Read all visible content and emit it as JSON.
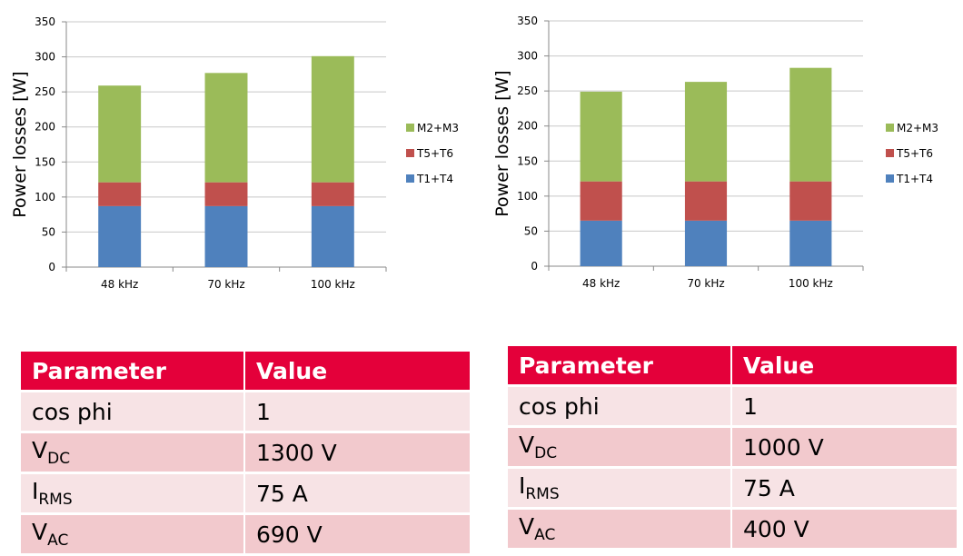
{
  "colors": {
    "M2+M3": "#9bbb59",
    "T5+T6": "#c0504d",
    "T1+T4": "#4f81bd",
    "header": "#e4003a"
  },
  "chart_data": [
    {
      "type": "bar",
      "stacked": true,
      "title": "",
      "xlabel": "",
      "ylabel": "Power losses [W]",
      "ylim": [
        0,
        350
      ],
      "yticks": [
        0,
        50,
        100,
        150,
        200,
        250,
        300,
        350
      ],
      "grid": true,
      "legend": "right",
      "categories": [
        "48 kHz",
        "70 kHz",
        "100 kHz"
      ],
      "series": [
        {
          "name": "T1+T4",
          "values": [
            87,
            87,
            87
          ]
        },
        {
          "name": "T5+T6",
          "values": [
            34,
            34,
            34
          ]
        },
        {
          "name": "M2+M3",
          "values": [
            138,
            156,
            180
          ]
        }
      ]
    },
    {
      "type": "bar",
      "stacked": true,
      "title": "",
      "xlabel": "",
      "ylabel": "Power losses [W]",
      "ylim": [
        0,
        350
      ],
      "yticks": [
        0,
        50,
        100,
        150,
        200,
        250,
        300,
        350
      ],
      "grid": true,
      "legend": "right",
      "categories": [
        "48 kHz",
        "70 kHz",
        "100 kHz"
      ],
      "series": [
        {
          "name": "T1+T4",
          "values": [
            65,
            65,
            65
          ]
        },
        {
          "name": "T5+T6",
          "values": [
            56,
            56,
            56
          ]
        },
        {
          "name": "M2+M3",
          "values": [
            128,
            142,
            162
          ]
        }
      ]
    }
  ],
  "tables": [
    {
      "header": {
        "param": "Parameter",
        "value": "Value"
      },
      "rows": [
        {
          "param": "cos phi",
          "sub": "",
          "value": "1"
        },
        {
          "param": "V",
          "sub": "DC",
          "value": "1300 V"
        },
        {
          "param": "I",
          "sub": "RMS",
          "value": "75 A"
        },
        {
          "param": "V",
          "sub": "AC",
          "value": "690 V"
        }
      ]
    },
    {
      "header": {
        "param": "Parameter",
        "value": "Value"
      },
      "rows": [
        {
          "param": "cos phi",
          "sub": "",
          "value": "1"
        },
        {
          "param": "V",
          "sub": "DC",
          "value": "1000 V"
        },
        {
          "param": "I",
          "sub": "RMS",
          "value": "75 A"
        },
        {
          "param": "V",
          "sub": "AC",
          "value": "400 V"
        }
      ]
    }
  ]
}
